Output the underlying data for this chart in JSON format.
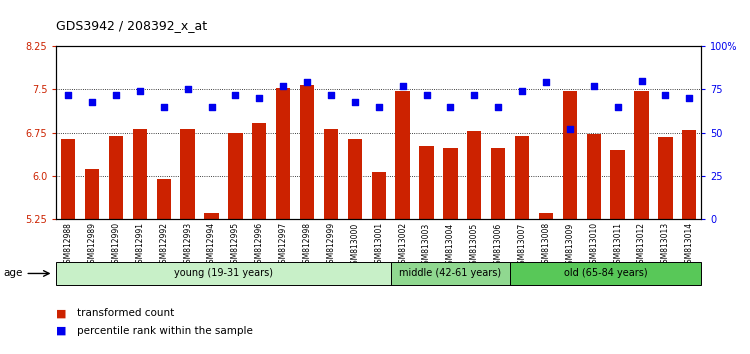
{
  "title": "GDS3942 / 208392_x_at",
  "samples": [
    "GSM812988",
    "GSM812989",
    "GSM812990",
    "GSM812991",
    "GSM812992",
    "GSM812993",
    "GSM812994",
    "GSM812995",
    "GSM812996",
    "GSM812997",
    "GSM812998",
    "GSM812999",
    "GSM813000",
    "GSM813001",
    "GSM813002",
    "GSM813003",
    "GSM813004",
    "GSM813005",
    "GSM813006",
    "GSM813007",
    "GSM813008",
    "GSM813009",
    "GSM813010",
    "GSM813011",
    "GSM813012",
    "GSM813013",
    "GSM813014"
  ],
  "bar_values": [
    6.65,
    6.13,
    6.7,
    6.82,
    5.95,
    6.82,
    5.37,
    6.75,
    6.92,
    7.52,
    7.58,
    6.82,
    6.65,
    6.07,
    7.48,
    6.52,
    6.48,
    6.78,
    6.48,
    6.7,
    5.37,
    7.48,
    6.72,
    6.45,
    7.48,
    6.68,
    6.8
  ],
  "dot_values": [
    72,
    68,
    72,
    74,
    65,
    75,
    65,
    72,
    70,
    77,
    79,
    72,
    68,
    65,
    77,
    72,
    65,
    72,
    65,
    74,
    79,
    52,
    77,
    65,
    80,
    72,
    70
  ],
  "ylim_left": [
    5.25,
    8.25
  ],
  "ylim_right": [
    0,
    100
  ],
  "yticks_left": [
    5.25,
    6.0,
    6.75,
    7.5,
    8.25
  ],
  "yticks_right": [
    0,
    25,
    50,
    75,
    100
  ],
  "ytick_labels_right": [
    "0",
    "25",
    "50",
    "75",
    "100%"
  ],
  "bar_color": "#cc2200",
  "dot_color": "#0000ee",
  "groups": [
    {
      "label": "young (19-31 years)",
      "start": 0,
      "end": 14,
      "color": "#c8f0c8"
    },
    {
      "label": "middle (42-61 years)",
      "start": 14,
      "end": 19,
      "color": "#90d890"
    },
    {
      "label": "old (65-84 years)",
      "start": 19,
      "end": 27,
      "color": "#58c858"
    }
  ],
  "legend_items": [
    {
      "color": "#cc2200",
      "label": "transformed count"
    },
    {
      "color": "#0000ee",
      "label": "percentile rank within the sample"
    }
  ],
  "background_color": "#ffffff"
}
